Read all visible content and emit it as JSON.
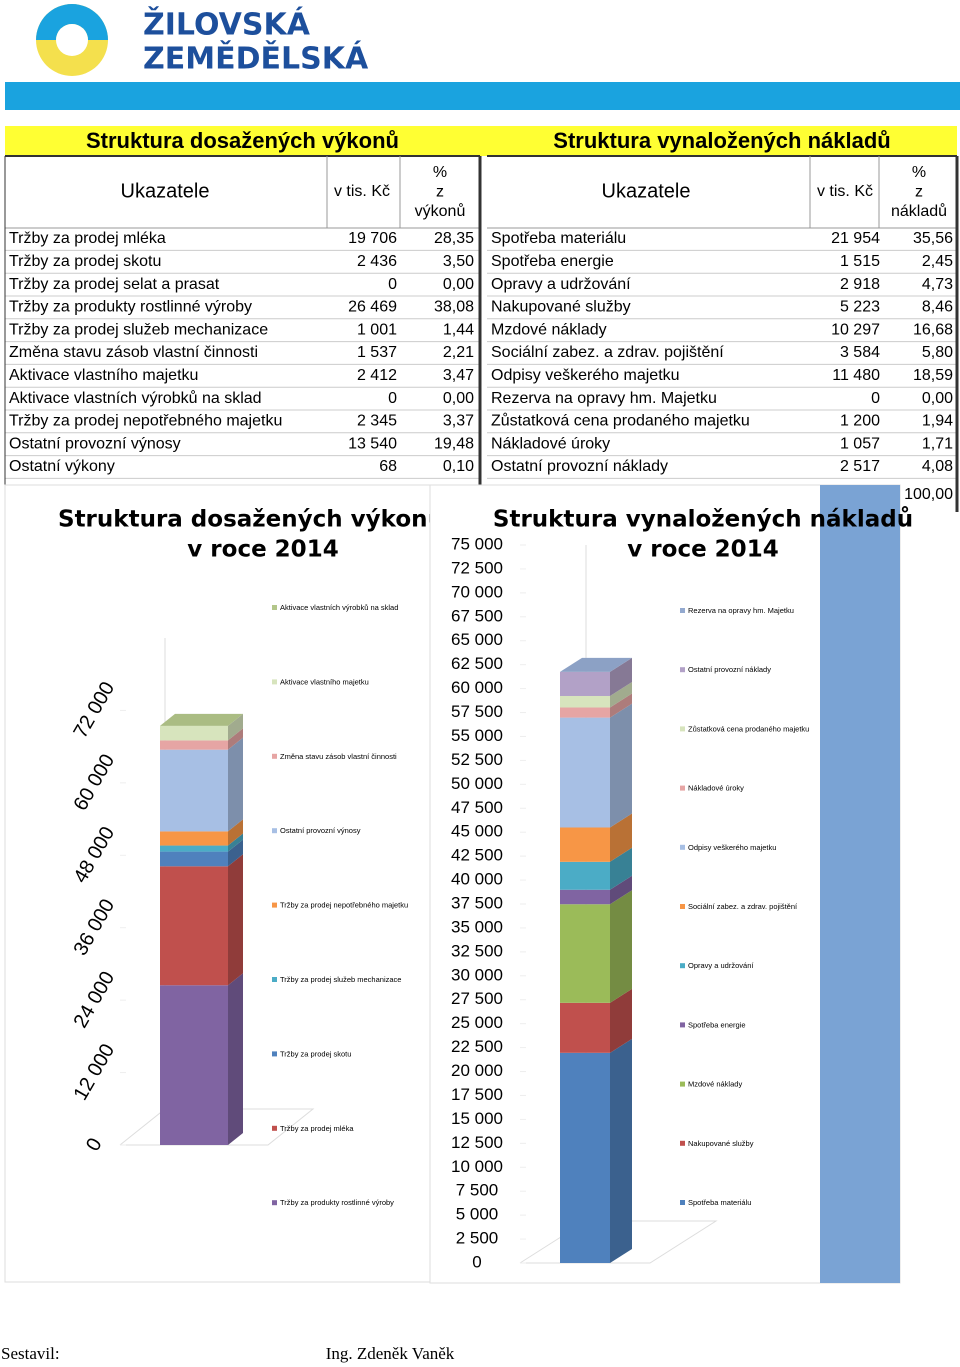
{
  "header": {
    "logo": [
      "ŽILOVSKÁ",
      "ZEMĚDĚLSKÁ"
    ]
  },
  "tables": [
    {
      "title": "Struktura dosažených výkonů",
      "header": {
        "name": "Ukazatele",
        "value": "v tis. Kč",
        "pct": [
          "%",
          "z",
          "výkonů"
        ]
      },
      "rows": [
        [
          "Tržby za prodej mléka",
          "19 706",
          "28,35"
        ],
        [
          "Tržby za prodej skotu",
          "2 436",
          "3,50"
        ],
        [
          "Tržby za prodej selat a prasat",
          "0",
          "0,00"
        ],
        [
          "Tržby za produkty rostlinné výroby",
          "26 469",
          "38,08"
        ],
        [
          "Tržby za prodej služeb mechanizace",
          "1 001",
          "1,44"
        ],
        [
          "Změna stavu zásob vlastní činnosti",
          "1 537",
          "2,21"
        ],
        [
          "Aktivace vlastního majetku",
          "2 412",
          "3,47"
        ],
        [
          "Aktivace vlastních výrobků na sklad",
          "0",
          "0,00"
        ],
        [
          "Tržby za prodej nepotřebného majetku",
          "2 345",
          "3,37"
        ],
        [
          "Ostatní provozní výnosy",
          "13 540",
          "19,48"
        ],
        [
          "Ostatní výkony",
          "68",
          "0,10"
        ]
      ]
    },
    {
      "title": "Struktura vynaložených nákladů",
      "header": {
        "name": "Ukazatele",
        "value": "v tis. Kč",
        "pct": [
          "%",
          "z",
          "nákladů"
        ]
      },
      "rows": [
        [
          "Spotřeba materiálu",
          "21 954",
          "35,56"
        ],
        [
          "Spotřeba energie",
          "1 515",
          "2,45"
        ],
        [
          "Opravy a udržování",
          "2 918",
          "4,73"
        ],
        [
          "Nakupované služby",
          "5 223",
          "8,46"
        ],
        [
          "Mzdové náklady",
          "10 297",
          "16,68"
        ],
        [
          "Sociální zabez. a zdrav. pojištění",
          "3 584",
          "5,80"
        ],
        [
          "Odpisy veškerého majetku",
          "11 480",
          "18,59"
        ],
        [
          "Rezerva na opravy hm. Majetku",
          "0",
          "0,00"
        ],
        [
          "Zůstatková cena prodaného majetku",
          "1 200",
          "1,94"
        ],
        [
          "Nákladové úroky",
          "1 057",
          "1,71"
        ],
        [
          "Ostatní provozní náklady",
          "2 517",
          "4,08"
        ]
      ],
      "total_pct": "100,00"
    }
  ],
  "chart_data": [
    {
      "type": "bar",
      "stacked": true,
      "title": [
        "Struktura dosažených výkonů",
        "v roce 2014"
      ],
      "ylim": [
        0,
        84000
      ],
      "yticks": [
        0,
        {
          "value": 12000,
          "label": "12 000"
        },
        {
          "value": 24000,
          "label": "24 000"
        },
        {
          "value": 36000,
          "label": "36 000"
        },
        {
          "value": 48000,
          "label": "48 000"
        },
        {
          "value": 60000,
          "label": "60 000"
        },
        {
          "value": 72000,
          "label": "72 000"
        }
      ],
      "series": [
        {
          "name": "Tržby za produkty rostlinné výroby",
          "color": "#8064a2",
          "values": [
            26469
          ]
        },
        {
          "name": "Tržby za prodej mléka",
          "color": "#c0504d",
          "values": [
            19706
          ]
        },
        {
          "name": "Tržby za prodej skotu",
          "color": "#4f81bd",
          "values": [
            2436
          ]
        },
        {
          "name": "Tržby za prodej služeb mechanizace",
          "color": "#4bacc6",
          "values": [
            1001
          ]
        },
        {
          "name": "Tržby za prodej nepotřebného majetku",
          "color": "#f79646",
          "values": [
            2345
          ]
        },
        {
          "name": "Ostatní provozní výnosy",
          "color": "#a7bfe4",
          "values": [
            13540
          ]
        },
        {
          "name": "Změna stavu zásob vlastní činnosti",
          "color": "#e6a5a4",
          "values": [
            1537
          ]
        },
        {
          "name": "Aktivace vlastního majetku",
          "color": "#d7e4bd",
          "values": [
            2412
          ]
        },
        {
          "name": "Aktivace vlastních výrobků na sklad",
          "color": "#b3c68a",
          "values": [
            0
          ]
        }
      ]
    },
    {
      "type": "bar",
      "stacked": true,
      "title": [
        "Struktura vynaložených nákladů",
        "v roce 2014"
      ],
      "ylim": [
        0,
        75000
      ],
      "yticks": [
        0,
        {
          "value": 2500,
          "label": "2 500"
        },
        {
          "value": 5000,
          "label": "5 000"
        },
        {
          "value": 7500,
          "label": "7 500"
        },
        {
          "value": 10000,
          "label": "10 000"
        },
        {
          "value": 12500,
          "label": "12 500"
        },
        {
          "value": 15000,
          "label": "15 000"
        },
        {
          "value": 17500,
          "label": "17 500"
        },
        {
          "value": 20000,
          "label": "20 000"
        },
        {
          "value": 22500,
          "label": "22 500"
        },
        {
          "value": 25000,
          "label": "25 000"
        },
        {
          "value": 27500,
          "label": "27 500"
        },
        {
          "value": 30000,
          "label": "30 000"
        },
        {
          "value": 32500,
          "label": "32 500"
        },
        {
          "value": 35000,
          "label": "35 000"
        },
        {
          "value": 37500,
          "label": "37 500"
        },
        {
          "value": 40000,
          "label": "40 000"
        },
        {
          "value": 42500,
          "label": "42 500"
        },
        {
          "value": 45000,
          "label": "45 000"
        },
        {
          "value": 47500,
          "label": "47 500"
        },
        {
          "value": 50000,
          "label": "50 000"
        },
        {
          "value": 52500,
          "label": "52 500"
        },
        {
          "value": 55000,
          "label": "55 000"
        },
        {
          "value": 57500,
          "label": "57 500"
        },
        {
          "value": 60000,
          "label": "60 000"
        },
        {
          "value": 62500,
          "label": "62 500"
        },
        {
          "value": 65000,
          "label": "65 000"
        },
        {
          "value": 67500,
          "label": "67 500"
        },
        {
          "value": 70000,
          "label": "70 000"
        },
        {
          "value": 72500,
          "label": "72 500"
        },
        {
          "value": 75000,
          "label": "75 000"
        }
      ],
      "series": [
        {
          "name": "Spotřeba materiálu",
          "color": "#4f81bd",
          "values": [
            21954
          ]
        },
        {
          "name": "Nakupované služby",
          "color": "#c0504d",
          "values": [
            5223
          ]
        },
        {
          "name": "Mzdové náklady",
          "color": "#9bbb59",
          "values": [
            10297
          ]
        },
        {
          "name": "Spotřeba energie",
          "color": "#8064a2",
          "values": [
            1515
          ]
        },
        {
          "name": "Opravy a udržování",
          "color": "#4bacc6",
          "values": [
            2918
          ]
        },
        {
          "name": "Sociální zabez. a zdrav. pojištění",
          "color": "#f79646",
          "values": [
            3584
          ]
        },
        {
          "name": "Odpisy veškerého majetku",
          "color": "#a7bfe4",
          "values": [
            11480
          ]
        },
        {
          "name": "Nákladové úroky",
          "color": "#e6a5a4",
          "values": [
            1057
          ]
        },
        {
          "name": "Zůstatková cena prodaného majetku",
          "color": "#d7e4bd",
          "values": [
            1200
          ]
        },
        {
          "name": "Ostatní provozní náklady",
          "color": "#b2a1c7",
          "values": [
            2517
          ]
        },
        {
          "name": "Rezerva na opravy hm. Majetku",
          "color": "#93a9cf",
          "values": [
            0
          ]
        }
      ]
    }
  ],
  "footer": {
    "author_label": "Sestavil:",
    "author": "Ing. Zdeněk Vaněk"
  }
}
